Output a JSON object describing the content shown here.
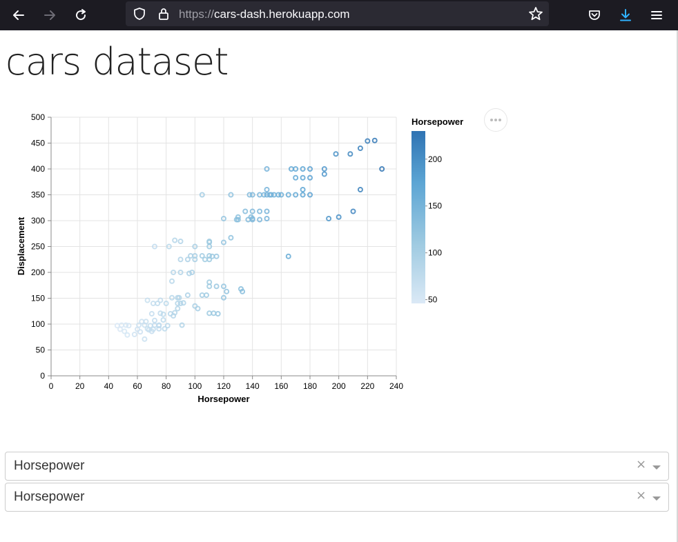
{
  "browser": {
    "url_scheme": "https://",
    "url_host": "cars-dash.herokuapp.com",
    "icons": [
      "back-icon",
      "forward-icon",
      "reload-icon",
      "shield-icon",
      "lock-icon",
      "star-icon",
      "pocket-icon",
      "download-icon",
      "menu-icon"
    ]
  },
  "page": {
    "title": "cars dataset"
  },
  "chart_data": {
    "type": "scatter",
    "xlabel": "Horsepower",
    "ylabel": "Displacement",
    "xlim": [
      0,
      240
    ],
    "ylim": [
      0,
      500
    ],
    "xticks": [
      "0",
      "20",
      "40",
      "60",
      "80",
      "100",
      "120",
      "140",
      "160",
      "180",
      "200",
      "220",
      "240"
    ],
    "yticks": [
      "0",
      "50",
      "100",
      "150",
      "200",
      "250",
      "300",
      "350",
      "400",
      "450",
      "500"
    ],
    "grid": true,
    "color_encoding": "Horsepower",
    "legend": {
      "title": "Horsepower",
      "placement": "right",
      "ticks": [
        "50",
        "100",
        "150",
        "200"
      ],
      "range": [
        46,
        230
      ],
      "colors": [
        "#dbe9f6",
        "#9ecae1",
        "#5ca5d4",
        "#2f73b3"
      ]
    },
    "points": [
      [
        46,
        97
      ],
      [
        48,
        90
      ],
      [
        49,
        98
      ],
      [
        51,
        86
      ],
      [
        52,
        98
      ],
      [
        53,
        79
      ],
      [
        54,
        97
      ],
      [
        58,
        80
      ],
      [
        60,
        90
      ],
      [
        61,
        98
      ],
      [
        62,
        85
      ],
      [
        63,
        105
      ],
      [
        65,
        71
      ],
      [
        65,
        98
      ],
      [
        66,
        105
      ],
      [
        67,
        146
      ],
      [
        67,
        91
      ],
      [
        68,
        89
      ],
      [
        69,
        97
      ],
      [
        70,
        120
      ],
      [
        70,
        86
      ],
      [
        71,
        140
      ],
      [
        71,
        90
      ],
      [
        72,
        98
      ],
      [
        72,
        107
      ],
      [
        72,
        250
      ],
      [
        74,
        140
      ],
      [
        75,
        97
      ],
      [
        75,
        98
      ],
      [
        75,
        91
      ],
      [
        76,
        121
      ],
      [
        76,
        146
      ],
      [
        78,
        119
      ],
      [
        78,
        108
      ],
      [
        79,
        91
      ],
      [
        80,
        140
      ],
      [
        81,
        97
      ],
      [
        82,
        250
      ],
      [
        83,
        120
      ],
      [
        84,
        151
      ],
      [
        84,
        183
      ],
      [
        85,
        200
      ],
      [
        85,
        116
      ],
      [
        86,
        122
      ],
      [
        86,
        262
      ],
      [
        88,
        140
      ],
      [
        88,
        151
      ],
      [
        88,
        130
      ],
      [
        89,
        151
      ],
      [
        90,
        140
      ],
      [
        90,
        260
      ],
      [
        90,
        225
      ],
      [
        90,
        200
      ],
      [
        91,
        98
      ],
      [
        92,
        141
      ],
      [
        95,
        156
      ],
      [
        95,
        225
      ],
      [
        96,
        198
      ],
      [
        97,
        232
      ],
      [
        98,
        200
      ],
      [
        100,
        225
      ],
      [
        100,
        232
      ],
      [
        100,
        250
      ],
      [
        100,
        135
      ],
      [
        102,
        130
      ],
      [
        105,
        350
      ],
      [
        105,
        232
      ],
      [
        105,
        156
      ],
      [
        107,
        225
      ],
      [
        108,
        156
      ],
      [
        110,
        260
      ],
      [
        110,
        232
      ],
      [
        110,
        225
      ],
      [
        110,
        258
      ],
      [
        110,
        250
      ],
      [
        110,
        121
      ],
      [
        110,
        173
      ],
      [
        110,
        181
      ],
      [
        112,
        231
      ],
      [
        113,
        121
      ],
      [
        115,
        173
      ],
      [
        115,
        231
      ],
      [
        116,
        120
      ],
      [
        120,
        173
      ],
      [
        120,
        151
      ],
      [
        120,
        258
      ],
      [
        120,
        304
      ],
      [
        122,
        163
      ],
      [
        125,
        350
      ],
      [
        125,
        267
      ],
      [
        129,
        302
      ],
      [
        130,
        302
      ],
      [
        130,
        307
      ],
      [
        132,
        168
      ],
      [
        133,
        163
      ],
      [
        135,
        318
      ],
      [
        137,
        302
      ],
      [
        138,
        350
      ],
      [
        139,
        307
      ],
      [
        140,
        302
      ],
      [
        140,
        304
      ],
      [
        140,
        318
      ],
      [
        140,
        350
      ],
      [
        145,
        350
      ],
      [
        145,
        302
      ],
      [
        145,
        318
      ],
      [
        148,
        350
      ],
      [
        150,
        318
      ],
      [
        150,
        304
      ],
      [
        150,
        400
      ],
      [
        150,
        360
      ],
      [
        150,
        350
      ],
      [
        152,
        350
      ],
      [
        153,
        350
      ],
      [
        155,
        350
      ],
      [
        158,
        350
      ],
      [
        160,
        350
      ],
      [
        165,
        231
      ],
      [
        165,
        350
      ],
      [
        167,
        400
      ],
      [
        170,
        400
      ],
      [
        170,
        383
      ],
      [
        170,
        350
      ],
      [
        175,
        400
      ],
      [
        175,
        383
      ],
      [
        175,
        360
      ],
      [
        175,
        350
      ],
      [
        180,
        400
      ],
      [
        180,
        383
      ],
      [
        180,
        350
      ],
      [
        190,
        400
      ],
      [
        190,
        390
      ],
      [
        193,
        304
      ],
      [
        198,
        429
      ],
      [
        200,
        307
      ],
      [
        208,
        429
      ],
      [
        210,
        318
      ],
      [
        215,
        440
      ],
      [
        215,
        360
      ],
      [
        220,
        454
      ],
      [
        225,
        455
      ],
      [
        230,
        400
      ]
    ]
  },
  "dropdowns": [
    {
      "value": "Horsepower",
      "clear": "×"
    },
    {
      "value": "Horsepower",
      "clear": "×"
    }
  ]
}
